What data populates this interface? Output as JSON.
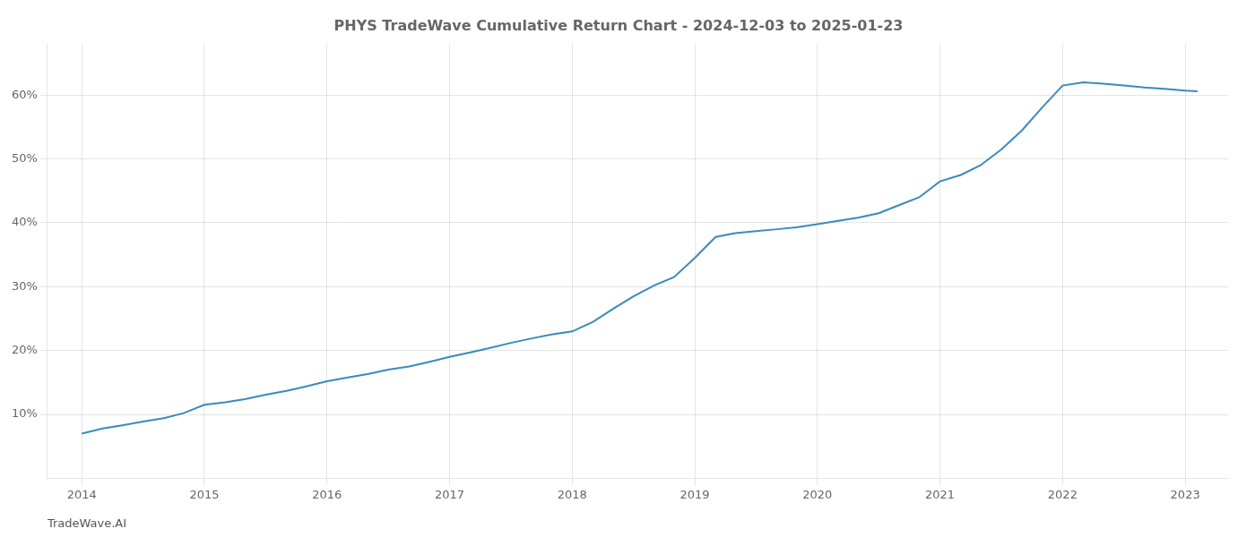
{
  "chart_data": {
    "type": "line",
    "title": "PHYS TradeWave Cumulative Return Chart - 2024-12-03 to 2025-01-23",
    "annotations": [
      "TradeWave.AI"
    ],
    "color": "#3a8abf",
    "x": [
      2014.0,
      2014.17,
      2014.33,
      2014.5,
      2014.67,
      2014.83,
      2015.0,
      2015.17,
      2015.33,
      2015.5,
      2015.67,
      2015.83,
      2016.0,
      2016.17,
      2016.33,
      2016.5,
      2016.67,
      2016.83,
      2017.0,
      2017.17,
      2017.33,
      2017.5,
      2017.67,
      2017.83,
      2018.0,
      2018.17,
      2018.33,
      2018.5,
      2018.67,
      2018.83,
      2019.0,
      2019.17,
      2019.33,
      2019.5,
      2019.67,
      2019.83,
      2020.0,
      2020.17,
      2020.33,
      2020.5,
      2020.67,
      2020.83,
      2021.0,
      2021.17,
      2021.33,
      2021.5,
      2021.67,
      2021.83,
      2022.0,
      2022.17,
      2022.33,
      2022.5,
      2022.67,
      2022.83,
      2023.0,
      2023.1
    ],
    "values": [
      7.0,
      7.8,
      8.3,
      8.9,
      9.4,
      10.2,
      11.5,
      11.9,
      12.4,
      13.1,
      13.7,
      14.4,
      15.2,
      15.8,
      16.3,
      17.0,
      17.5,
      18.2,
      19.0,
      19.7,
      20.4,
      21.2,
      21.9,
      22.5,
      23.0,
      24.5,
      26.5,
      28.5,
      30.2,
      31.5,
      34.5,
      37.8,
      38.4,
      38.7,
      39.0,
      39.3,
      39.8,
      40.3,
      40.8,
      41.5,
      42.8,
      44.0,
      46.5,
      47.5,
      49.0,
      51.5,
      54.5,
      58.0,
      61.5,
      62.0,
      61.8,
      61.5,
      61.2,
      61.0,
      60.7,
      60.6
    ],
    "xlim": [
      2013.72,
      2023.35
    ],
    "xticks": [
      2014,
      2015,
      2016,
      2017,
      2018,
      2019,
      2020,
      2021,
      2022,
      2023
    ],
    "ylim": [
      0,
      68
    ],
    "yticks": [
      {
        "value": 10,
        "label": "10%"
      },
      {
        "value": 20,
        "label": "20%"
      },
      {
        "value": 30,
        "label": "30%"
      },
      {
        "value": 40,
        "label": "40%"
      },
      {
        "value": 50,
        "label": "50%"
      },
      {
        "value": 60,
        "label": "60%"
      }
    ],
    "grid": true
  }
}
